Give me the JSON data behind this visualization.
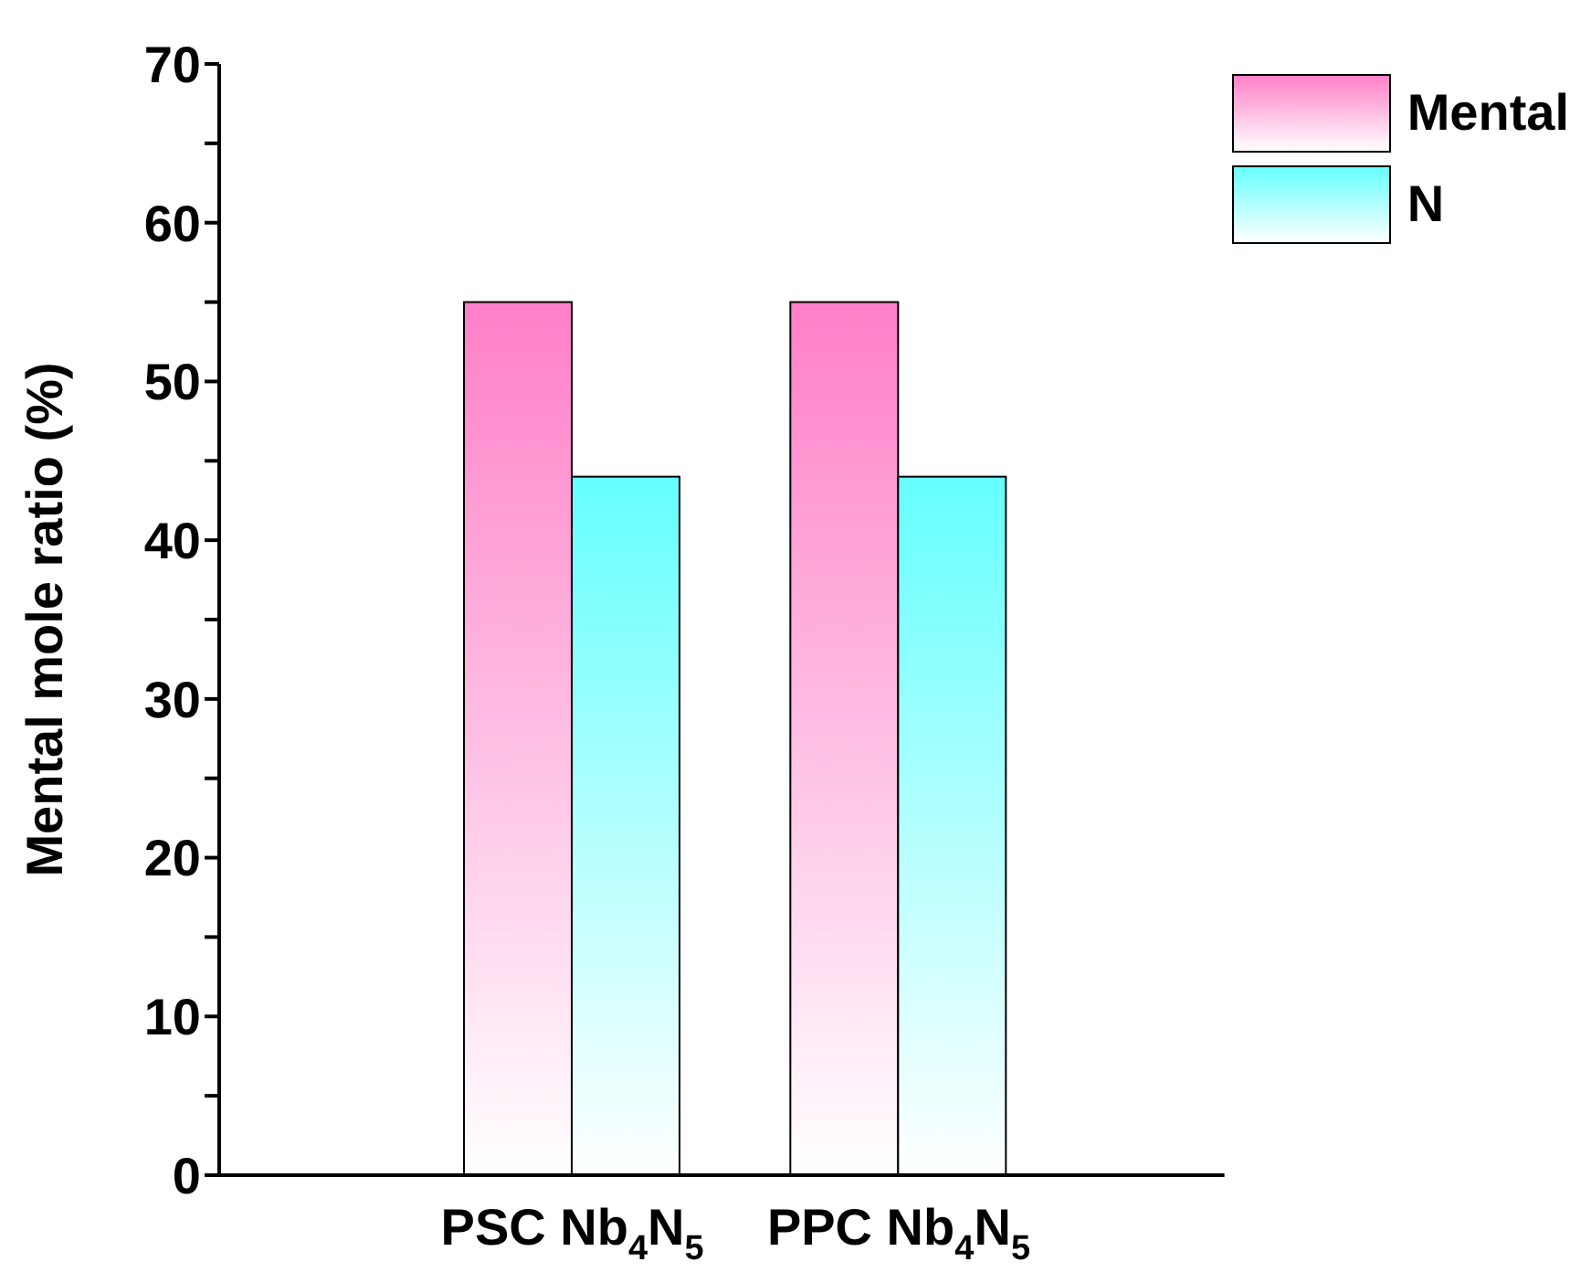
{
  "chart_data": {
    "type": "bar",
    "ylabel": "Mental mole ratio (%)",
    "categories": [
      "PSC Nb$_{4}$N$_{5}$",
      "PPC Nb$_{4}$N$_{5}$"
    ],
    "series": [
      {
        "name": "Mental",
        "color": "#ff7fc8",
        "values": [
          55,
          55
        ]
      },
      {
        "name": "N",
        "color": "#66ffff",
        "values": [
          44,
          44
        ]
      }
    ],
    "ylim": [
      0,
      70
    ],
    "yticks": [
      0,
      {
        "value": 5,
        "label": null
      },
      10,
      {
        "value": 15,
        "label": null
      },
      20,
      {
        "value": 25,
        "label": null
      },
      30,
      {
        "value": 35,
        "label": null
      },
      40,
      {
        "value": 45,
        "label": null
      },
      50,
      {
        "value": 55,
        "label": null
      },
      60,
      {
        "value": 65,
        "label": null
      },
      70
    ],
    "grid": false,
    "legend": "top right"
  }
}
